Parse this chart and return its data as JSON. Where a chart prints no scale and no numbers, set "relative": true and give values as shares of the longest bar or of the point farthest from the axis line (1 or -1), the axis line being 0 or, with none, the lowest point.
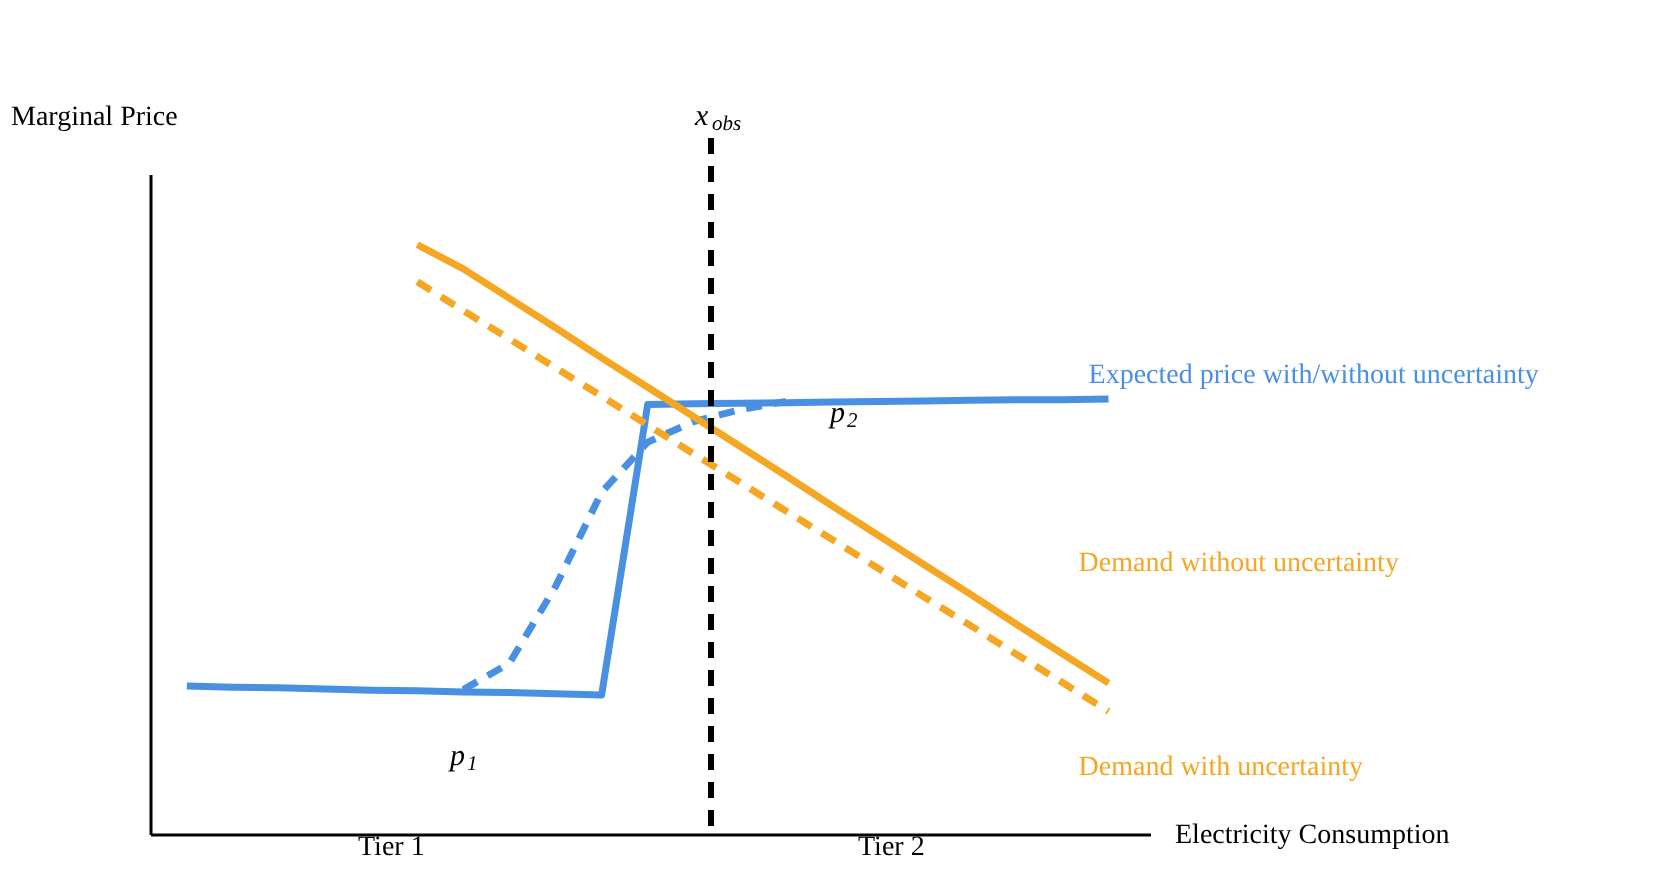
{
  "chart_data": {
    "type": "line",
    "relative": true,
    "xlabel": "Electricity Consumption",
    "ylabel": "Marginal Price",
    "tick_labels": false,
    "grid": false,
    "categories": [
      null,
      null,
      null,
      null,
      null,
      null,
      null,
      null,
      null,
      null,
      null,
      null,
      null,
      null,
      null,
      null,
      null,
      null,
      null,
      null,
      null
    ],
    "series": [
      {
        "name": "Expected price with/without uncertainty",
        "color": "#4a90e2",
        "line_style": "solid",
        "values": [
          0.251,
          0.249,
          0.248,
          0.246,
          0.244,
          0.243,
          0.241,
          0.24,
          0.238,
          0.236,
          0.729,
          0.73,
          0.731,
          0.732,
          0.733,
          0.734,
          0.735,
          0.736,
          0.737,
          0.737,
          0.738
        ]
      },
      {
        "color": "#4a90e2",
        "line_style": "dashed",
        "values": [
          null,
          null,
          null,
          null,
          null,
          null,
          0.245,
          0.29,
          0.42,
          0.58,
          0.665,
          0.7,
          0.72,
          0.734,
          null,
          null,
          null,
          null,
          null,
          null,
          null
        ]
      },
      {
        "name": "Demand without uncertainty",
        "color": "#f5a623",
        "line_style": "solid",
        "values": [
          null,
          null,
          null,
          null,
          null,
          1.0,
          0.959,
          0.909,
          0.859,
          0.808,
          0.758,
          0.708,
          0.658,
          0.608,
          0.557,
          0.507,
          0.457,
          0.407,
          0.356,
          0.306,
          0.256
        ]
      },
      {
        "name": "Demand with uncertainty",
        "color": "#f5a623",
        "line_style": "dashed",
        "values": [
          null,
          null,
          null,
          null,
          null,
          0.937,
          0.888,
          0.84,
          0.791,
          0.743,
          0.694,
          0.645,
          0.597,
          0.548,
          0.5,
          0.451,
          0.402,
          0.354,
          0.305,
          0.257,
          0.208
        ]
      }
    ],
    "annotations": [
      "p$_{1}$",
      "p$_{2}$",
      "Tier 1",
      "Tier 2",
      "x$_{obs}$"
    ]
  }
}
